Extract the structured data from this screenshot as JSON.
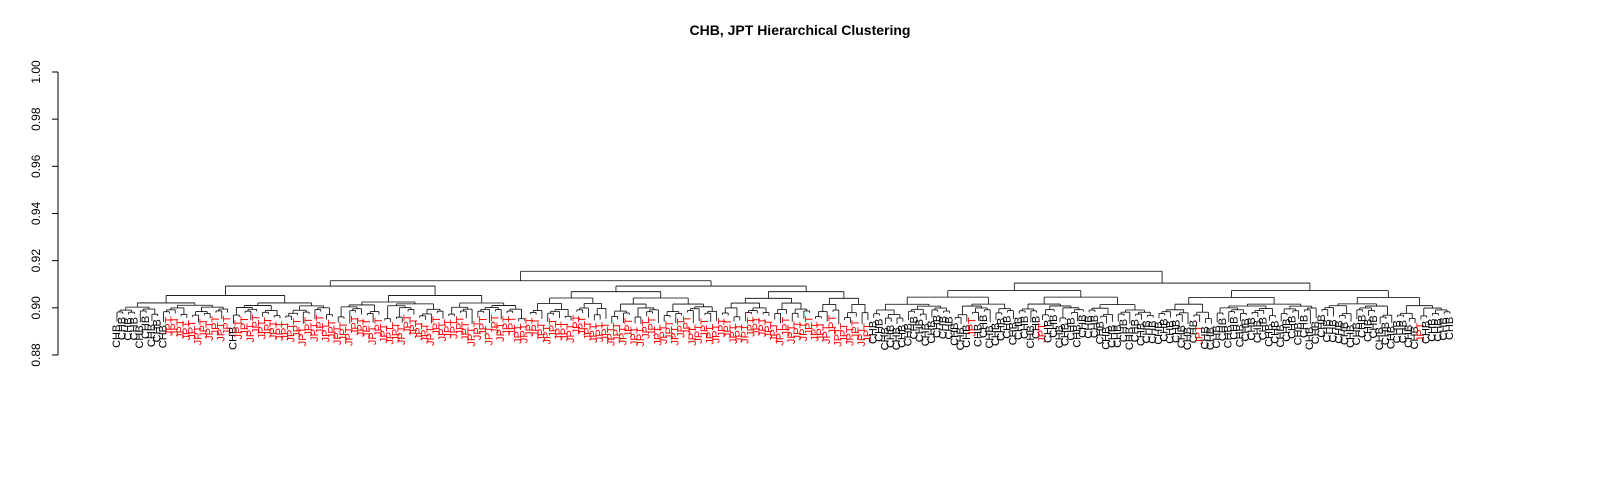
{
  "chart_data": {
    "type": "dendrogram",
    "title": "CHB, JPT Hierarchical Clustering",
    "xlabel": "",
    "ylabel": "",
    "ylim": [
      0.88,
      1.0
    ],
    "yticks": [
      "0.88",
      "0.90",
      "0.92",
      "0.94",
      "0.96",
      "0.98",
      "1.00"
    ],
    "label_colors": {
      "CHB": "#000000",
      "JPT": "#ff0000"
    },
    "leaves": [
      "CHB",
      "CHB",
      "CHB",
      "CHB",
      "CHB",
      "CHB",
      "CHB",
      "CHB",
      "CHB",
      "JPT",
      "JPT",
      "JPT",
      "JPT",
      "JPT",
      "JPT",
      "JPT",
      "JPT",
      "JPT",
      "JPT",
      "JPT",
      "CHB",
      "JPT",
      "JPT",
      "JPT",
      "JPT",
      "JPT",
      "JPT",
      "JPT",
      "JPT",
      "JPT",
      "JPT",
      "JPT",
      "JPT",
      "JPT",
      "JPT",
      "JPT",
      "JPT",
      "JPT",
      "JPT",
      "JPT",
      "JPT",
      "JPT",
      "JPT",
      "JPT",
      "JPT",
      "JPT",
      "JPT",
      "JPT",
      "JPT",
      "JPT",
      "JPT",
      "JPT",
      "JPT",
      "JPT",
      "JPT",
      "JPT",
      "JPT",
      "JPT",
      "JPT",
      "JPT",
      "JPT",
      "JPT",
      "JPT",
      "JPT",
      "JPT",
      "JPT",
      "JPT",
      "JPT",
      "JPT",
      "JPT",
      "JPT",
      "JPT",
      "JPT",
      "JPT",
      "JPT",
      "JPT",
      "JPT",
      "JPT",
      "JPT",
      "JPT",
      "JPT",
      "JPT",
      "JPT",
      "JPT",
      "JPT",
      "JPT",
      "JPT",
      "JPT",
      "JPT",
      "JPT",
      "JPT",
      "JPT",
      "JPT",
      "JPT",
      "JPT",
      "JPT",
      "JPT",
      "JPT",
      "JPT",
      "JPT",
      "JPT",
      "JPT",
      "JPT",
      "JPT",
      "JPT",
      "JPT",
      "JPT",
      "JPT",
      "JPT",
      "JPT",
      "JPT",
      "JPT",
      "JPT",
      "JPT",
      "JPT",
      "JPT",
      "JPT",
      "JPT",
      "JPT",
      "JPT",
      "JPT",
      "JPT",
      "JPT",
      "JPT",
      "JPT",
      "JPT",
      "JPT",
      "JPT",
      "JPT",
      "JPT",
      "CHB",
      "CHB",
      "CHB",
      "CHB",
      "CHB",
      "CHB",
      "CHB",
      "CHB",
      "CHB",
      "CHB",
      "CHB",
      "CHB",
      "CHB",
      "CHB",
      "CHB",
      "CHB",
      "CHB",
      "JPT",
      "CHB",
      "CHB",
      "CHB",
      "CHB",
      "CHB",
      "CHB",
      "CHB",
      "CHB",
      "CHB",
      "CHB",
      "CHB",
      "JPT",
      "CHB",
      "CHB",
      "CHB",
      "CHB",
      "CHB",
      "CHB",
      "CHB",
      "CHB",
      "CHB",
      "CHB",
      "CHB",
      "CHB",
      "CHB",
      "CHB",
      "CHB",
      "CHB",
      "CHB",
      "CHB",
      "CHB",
      "CHB",
      "CHB",
      "CHB",
      "CHB",
      "CHB",
      "CHB",
      "CHB",
      "JPT",
      "CHB",
      "CHB",
      "CHB",
      "CHB",
      "CHB",
      "CHB",
      "CHB",
      "CHB",
      "CHB",
      "CHB",
      "CHB",
      "CHB",
      "CHB",
      "CHB",
      "CHB",
      "CHB",
      "CHB",
      "CHB",
      "CHB",
      "CHB",
      "CHB",
      "CHB",
      "CHB",
      "CHB",
      "CHB",
      "CHB",
      "CHB",
      "CHB",
      "CHB",
      "CHB",
      "CHB",
      "CHB",
      "CHB",
      "CHB",
      "CHB",
      "CHB",
      "CHB",
      "JPT",
      "CHB",
      "CHB",
      "CHB",
      "CHB",
      "CHB"
    ]
  }
}
